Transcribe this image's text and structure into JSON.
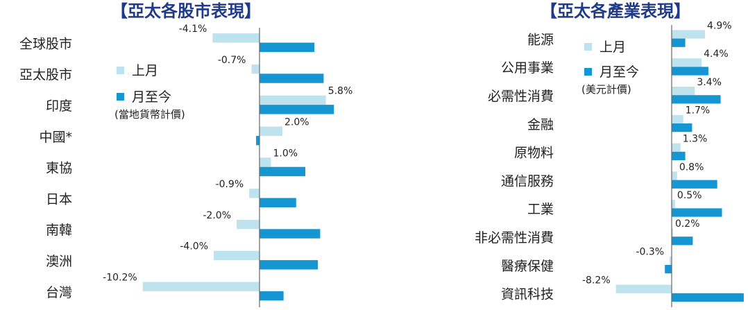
{
  "colors": {
    "prev": "#bfe3ee",
    "curr": "#1596d2",
    "axis": "#666666",
    "title": "#1f3a8a"
  },
  "chart_data": [
    {
      "type": "bar",
      "orientation": "horizontal",
      "title": "【亞太各股市表現】",
      "categories": [
        "全球股市",
        "亞太股市",
        "印度",
        "中國*",
        "東協",
        "日本",
        "南韓",
        "澳洲",
        "台灣"
      ],
      "series": [
        {
          "name": "上月",
          "values": [
            -4.1,
            -0.7,
            5.8,
            2.0,
            1.0,
            -0.9,
            -2.0,
            -4.0,
            -10.2
          ],
          "labels": [
            "-4.1%",
            "-0.7%",
            "5.8%",
            "2.0%",
            "1.0%",
            "-0.9%",
            "-2.0%",
            "-4.0%",
            "-10.2%"
          ]
        },
        {
          "name": "月至今",
          "values": [
            4.8,
            5.6,
            6.5,
            -0.3,
            4.0,
            3.2,
            5.3,
            5.1,
            2.1
          ]
        }
      ],
      "legend_note": "(當地貨幣計價)",
      "legend_position": "left-middle",
      "value_labels_series": "上月"
    },
    {
      "type": "bar",
      "orientation": "horizontal",
      "title": "【亞太各產業表現】",
      "categories": [
        "能源",
        "公用事業",
        "必需性消費",
        "金融",
        "原物料",
        "通信服務",
        "工業",
        "非必需性消費",
        "醫療保健",
        "資訊科技"
      ],
      "series": [
        {
          "name": "上月",
          "values": [
            4.9,
            4.4,
            3.4,
            1.7,
            1.3,
            0.8,
            0.5,
            0.2,
            -0.3,
            -8.2
          ],
          "labels": [
            "4.9%",
            "4.4%",
            "3.4%",
            "1.7%",
            "1.3%",
            "0.8%",
            "0.5%",
            "0.2%",
            "-0.3%",
            "-8.2%"
          ]
        },
        {
          "name": "月至今",
          "values": [
            2.0,
            5.4,
            7.2,
            3.0,
            2.0,
            6.7,
            7.4,
            3.1,
            -1.0,
            10.6
          ]
        }
      ],
      "legend_note": "(美元計價)",
      "legend_position": "top-left",
      "value_labels_series": "上月"
    }
  ]
}
